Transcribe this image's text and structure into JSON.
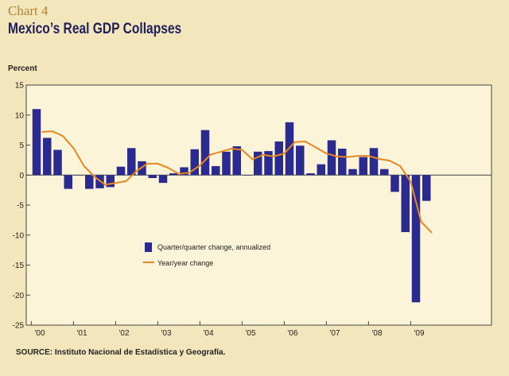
{
  "header": {
    "chart_number": "Chart 4",
    "title": "Mexico’s Real GDP Collapses"
  },
  "footer": {
    "source": "SOURCE: Instituto Nacional de Estadística y Geografía."
  },
  "colors": {
    "background": "#f3e6bd",
    "plot_background": "#fbf4d8",
    "bar": "#2b2b8f",
    "line": "#e8861f",
    "title": "#1f1f5a",
    "chart_number": "#b5832a"
  },
  "chart_data": {
    "type": "bar",
    "title": "Mexico’s Real GDP Collapses",
    "ylabel": "Percent",
    "xlabel": "",
    "ylim": [
      -25,
      15
    ],
    "yticks": [
      15,
      10,
      5,
      0,
      -5,
      -10,
      -15,
      -20,
      -25
    ],
    "grid": false,
    "legend_position": "center-left",
    "x_tick_labels": [
      "'00",
      "'01",
      "'02",
      "'03",
      "'04",
      "'05",
      "'06",
      "'07",
      "'08",
      "'09"
    ],
    "quarters_per_year": 4,
    "series": [
      {
        "name": "Quarter/quarter change, annualized",
        "type": "bar",
        "values": [
          11,
          6.2,
          4.2,
          -2.3,
          0,
          -2.3,
          -2.2,
          -2.0,
          1.4,
          4.5,
          2.3,
          -0.5,
          -1.3,
          0.3,
          1.3,
          4.3,
          7.5,
          1.5,
          3.9,
          4.8,
          0,
          3.9,
          4.0,
          5.6,
          8.8,
          4.9,
          0.3,
          1.8,
          5.8,
          4.4,
          1.0,
          3.0,
          4.5,
          1.0,
          -2.8,
          -9.5,
          -21.2,
          -4.3
        ],
        "start_quarter": 0
      },
      {
        "name": "Year/year change",
        "type": "line",
        "values": [
          7.2,
          7.3,
          6.5,
          4.5,
          1.5,
          -0.3,
          -1.6,
          -1.3,
          -1.0,
          0.7,
          1.9,
          1.9,
          1.2,
          0.2,
          0.4,
          1.6,
          3.4,
          3.9,
          4.4,
          4.2,
          2.6,
          3.4,
          3.1,
          3.6,
          5.5,
          5.6,
          4.6,
          3.6,
          3.1,
          3.0,
          3.2,
          3.2,
          2.7,
          2.4,
          1.5,
          -1.1,
          -7.8,
          -9.6
        ],
        "start_quarter": 1
      }
    ]
  }
}
